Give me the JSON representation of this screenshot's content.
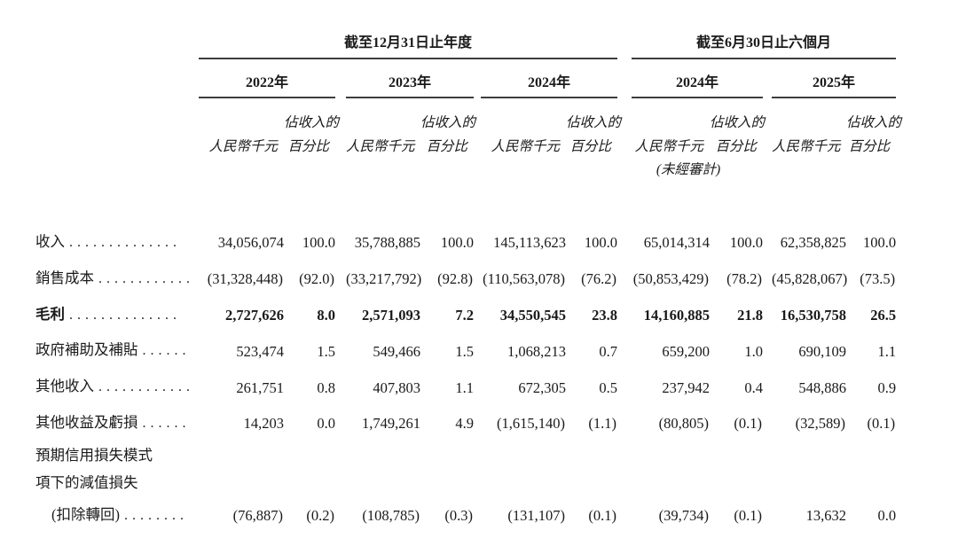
{
  "page": {
    "background": "#ffffff",
    "text_color": "#1a1a1a",
    "rule_color": "#3d3d3d"
  },
  "table": {
    "section_headers": [
      {
        "title": "截至12月31日止年度"
      },
      {
        "title": "截至6月30日止六個月"
      }
    ],
    "year_headers": [
      "2022年",
      "2023年",
      "2024年",
      "2024年",
      "2025年"
    ],
    "unit_header": {
      "amount": "人民幣千元",
      "pct_top": "佔收入的",
      "pct_bottom": "百分比",
      "unaudited": "(未經審計)"
    },
    "rows": [
      {
        "label": "收入",
        "dots": "..............",
        "values": [
          "34,056,074",
          "100.0",
          "35,788,885",
          "100.0",
          "145,113,623",
          "100.0",
          "65,014,314",
          "100.0",
          "62,358,825",
          "100.0"
        ]
      },
      {
        "label": "銷售成本",
        "dots": "............",
        "values": [
          "(31,328,448)",
          "(92.0)",
          "(33,217,792)",
          "(92.8)",
          "(110,563,078)",
          "(76.2)",
          "(50,853,429)",
          "(78.2)",
          "(45,828,067)",
          "(73.5)"
        ]
      },
      {
        "label": "毛利",
        "dots": "..............",
        "bold": true,
        "values": [
          "2,727,626",
          "8.0",
          "2,571,093",
          "7.2",
          "34,550,545",
          "23.8",
          "14,160,885",
          "21.8",
          "16,530,758",
          "26.5"
        ]
      },
      {
        "label": "政府補助及補貼",
        "dots": "......",
        "values": [
          "523,474",
          "1.5",
          "549,466",
          "1.5",
          "1,068,213",
          "0.7",
          "659,200",
          "1.0",
          "690,109",
          "1.1"
        ]
      },
      {
        "label": "其他收入",
        "dots": "............",
        "values": [
          "261,751",
          "0.8",
          "407,803",
          "1.1",
          "672,305",
          "0.5",
          "237,942",
          "0.4",
          "548,886",
          "0.9"
        ]
      },
      {
        "label": "其他收益及虧損",
        "dots": "......",
        "values": [
          "14,203",
          "0.0",
          "1,749,261",
          "4.9",
          "(1,615,140)",
          "(1.1)",
          "(80,805)",
          "(0.1)",
          "(32,589)",
          "(0.1)"
        ]
      },
      {
        "label": "預期信用損失模式",
        "dots": "",
        "values": []
      },
      {
        "label": "項下的減值損失",
        "dots": "",
        "values": []
      },
      {
        "label": "(扣除轉回)",
        "dots": "........",
        "values": [
          "(76,887)",
          "(0.2)",
          "(108,785)",
          "(0.3)",
          "(131,107)",
          "(0.1)",
          "(39,734)",
          "(0.1)",
          "13,632",
          "0.0"
        ]
      }
    ]
  }
}
